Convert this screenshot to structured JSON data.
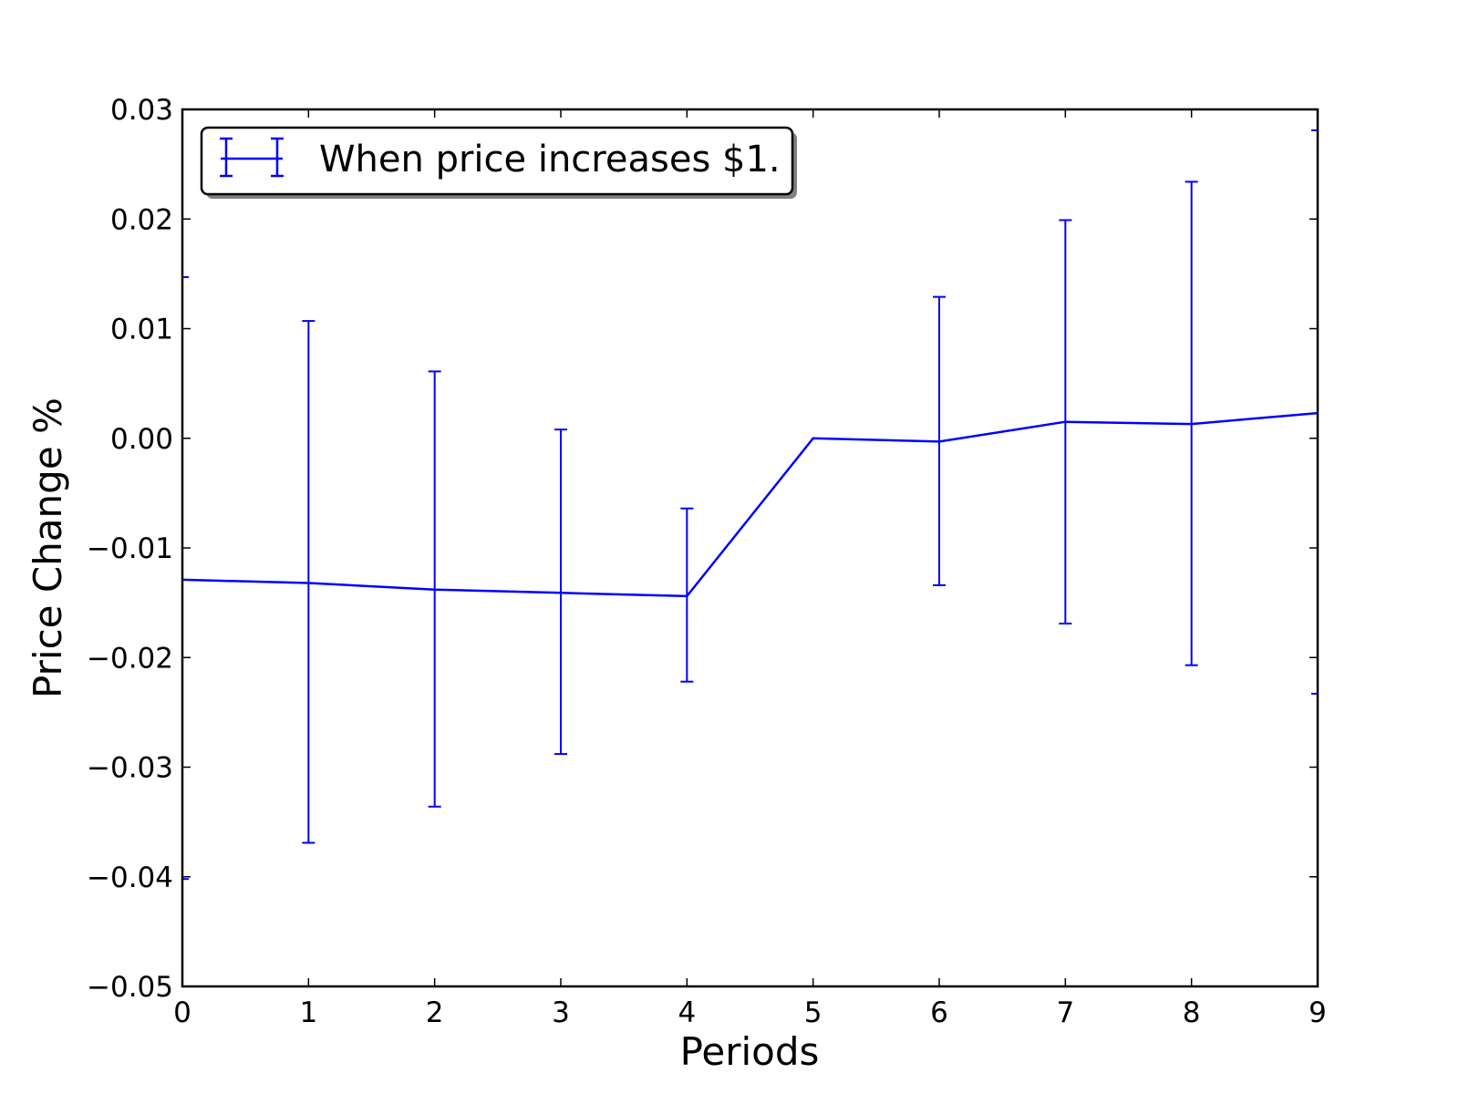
{
  "chart_data": {
    "type": "line",
    "title": "",
    "xlabel": "Periods",
    "ylabel": "Price Change %",
    "xlim": [
      0,
      9
    ],
    "ylim": [
      -0.05,
      0.03
    ],
    "xticks": [
      0,
      1,
      2,
      3,
      4,
      5,
      6,
      7,
      8,
      9
    ],
    "xtick_labels": [
      "0",
      "1",
      "2",
      "3",
      "4",
      "5",
      "6",
      "7",
      "8",
      "9"
    ],
    "yticks": [
      -0.05,
      -0.04,
      -0.03,
      -0.02,
      -0.01,
      0.0,
      0.01,
      0.02,
      0.03
    ],
    "ytick_labels": [
      "−0.05",
      "−0.04",
      "−0.03",
      "−0.02",
      "−0.01",
      "0.00",
      "0.01",
      "0.02",
      "0.03"
    ],
    "grid": false,
    "legend_position": "top-left",
    "series": [
      {
        "name": "When price increases $1.",
        "color": "#0000ff",
        "x": [
          0,
          1,
          2,
          3,
          4,
          5,
          6,
          7,
          8,
          9
        ],
        "y": [
          -0.0129,
          -0.0132,
          -0.0138,
          -0.0141,
          -0.0144,
          0.0,
          -0.0003,
          0.0015,
          0.0013,
          0.0023
        ],
        "error_low": [
          -0.0402,
          -0.0369,
          -0.0336,
          -0.0288,
          -0.0222,
          0.0,
          -0.0134,
          -0.0169,
          -0.0207,
          -0.0233
        ],
        "error_high": [
          0.0147,
          0.0107,
          0.0061,
          0.0008,
          -0.0064,
          0.0,
          0.0129,
          0.0199,
          0.0234,
          0.0281
        ]
      }
    ]
  }
}
